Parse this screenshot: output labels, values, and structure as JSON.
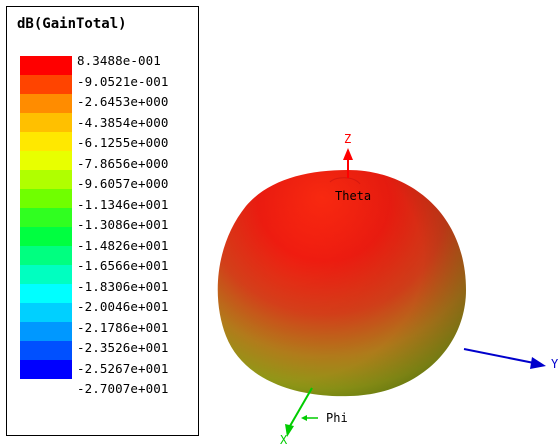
{
  "legend": {
    "title": "dB(GainTotal)",
    "levels": [
      {
        "label": "8.3488e-001",
        "color": "#ff0000"
      },
      {
        "label": "-9.0521e-001",
        "color": "#ff4400"
      },
      {
        "label": "-2.6453e+000",
        "color": "#ff8c00"
      },
      {
        "label": "-4.3854e+000",
        "color": "#ffc000"
      },
      {
        "label": "-6.1255e+000",
        "color": "#ffe800"
      },
      {
        "label": "-7.8656e+000",
        "color": "#e8ff00"
      },
      {
        "label": "-9.6057e+000",
        "color": "#b0ff00"
      },
      {
        "label": "-1.1346e+001",
        "color": "#70ff00"
      },
      {
        "label": "-1.3086e+001",
        "color": "#30ff20"
      },
      {
        "label": "-1.4826e+001",
        "color": "#00ff40"
      },
      {
        "label": "-1.6566e+001",
        "color": "#00ff80"
      },
      {
        "label": "-1.8306e+001",
        "color": "#00ffc0"
      },
      {
        "label": "-2.0046e+001",
        "color": "#00ffff"
      },
      {
        "label": "-2.1786e+001",
        "color": "#00d0ff"
      },
      {
        "label": "-2.3526e+001",
        "color": "#0098ff"
      },
      {
        "label": "-2.5267e+001",
        "color": "#0050ff"
      },
      {
        "label": "-2.7007e+001",
        "color": "#0000ff"
      }
    ]
  },
  "axes": {
    "z_label": "Z",
    "y_label": "Y",
    "x_label": "X",
    "theta_label": "Theta",
    "phi_label": "Phi",
    "z_color": "#ff0000",
    "y_color": "#0000cc",
    "x_color": "#00cc00"
  }
}
